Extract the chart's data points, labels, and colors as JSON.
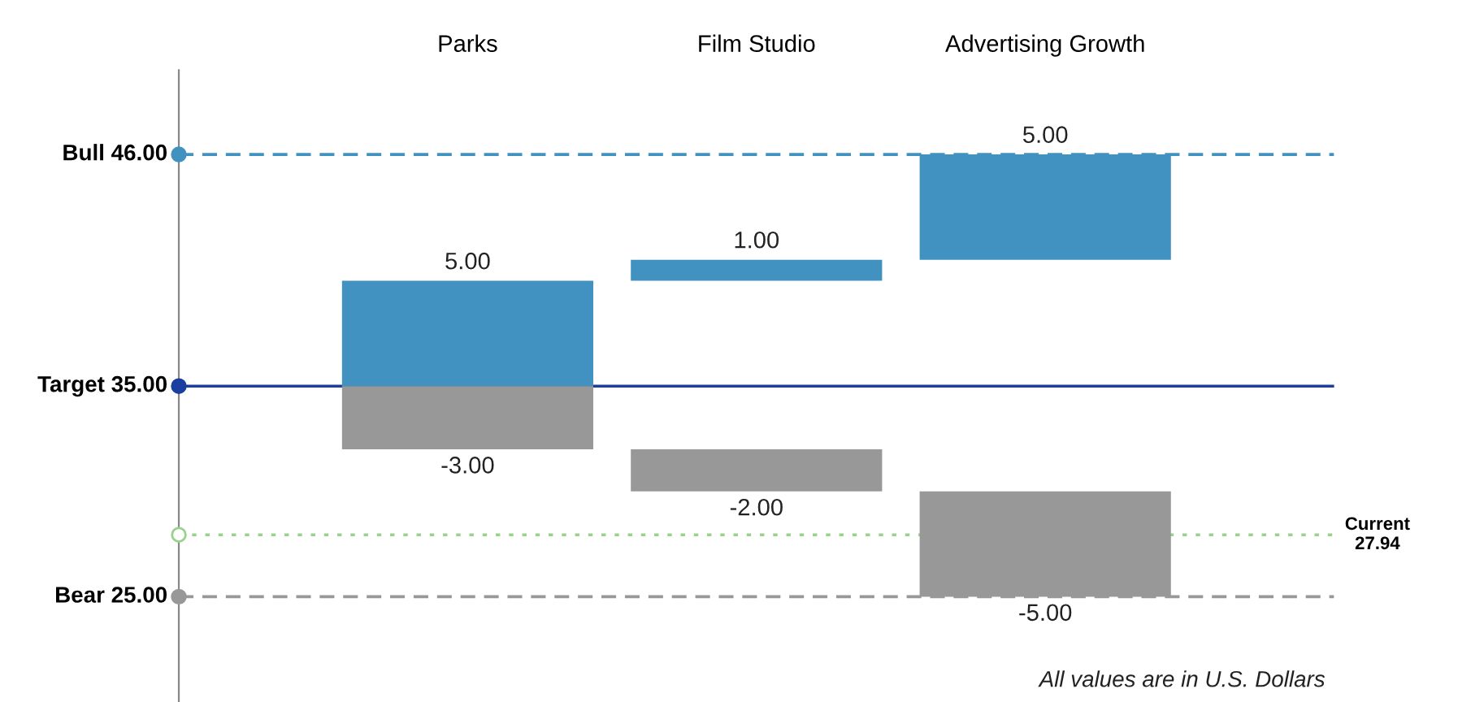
{
  "chart_data": {
    "type": "bar",
    "categories": [
      "Parks",
      "Film Studio",
      "Advertising Growth"
    ],
    "series": [
      {
        "color": "#4292c1",
        "base": [
          35,
          40,
          41
        ],
        "values": [
          5,
          1,
          5
        ],
        "value_labels": [
          "5.00",
          "1.00",
          "5.00"
        ]
      },
      {
        "color": "#989898",
        "base": [
          35,
          32,
          30
        ],
        "values": [
          -3,
          -2,
          -5
        ],
        "value_labels": [
          "-3.00",
          "-2.00",
          "-5.00"
        ]
      }
    ],
    "ylim": [
      20,
      50
    ],
    "tick_labels": "x",
    "grid": false,
    "ref_lines": [
      {
        "axis": "y",
        "value": 46,
        "label": "Bull 46.00",
        "color": "#4292c1",
        "line_style": "dashed"
      },
      {
        "axis": "y",
        "value": 35,
        "label": "Target 35.00",
        "color": "#1a3fa0",
        "line_style": "solid"
      },
      {
        "axis": "y",
        "value": 27.94,
        "label": "Current\n27.94",
        "color": "#99d18f",
        "line_style": "dotted"
      },
      {
        "axis": "y",
        "value": 25,
        "label": "Bear 25.00",
        "color": "#989898",
        "line_style": "dashed"
      }
    ],
    "annotations": [
      "All values are in U.S. Dollars"
    ]
  }
}
